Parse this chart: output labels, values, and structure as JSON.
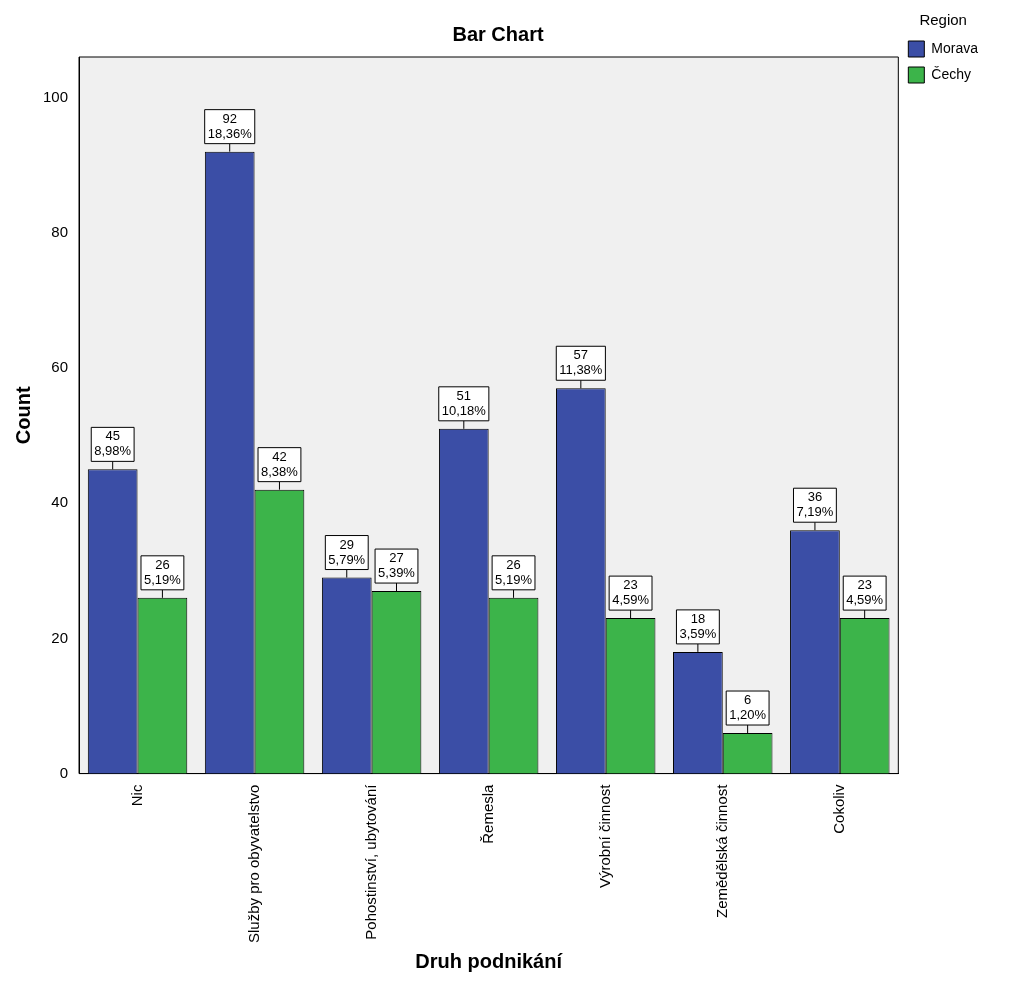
{
  "chart_data": {
    "type": "bar",
    "title": "Bar Chart",
    "xlabel": "Druh podnikání",
    "ylabel": "Count",
    "legend_title": "Region",
    "legend": "top right",
    "grid": false,
    "categories": [
      "Nic",
      "Služby pro obyvatelstvo",
      "Pohostinství, ubytování",
      "Řemesla",
      "Výrobní činnost",
      "Zemědělská činnost",
      "Cokoliv"
    ],
    "ylim": [
      0,
      106
    ],
    "yticks": [
      0,
      20,
      40,
      60,
      80,
      100
    ],
    "series": [
      {
        "name": "Morava",
        "color": "#3b4ea6",
        "values": [
          45,
          92,
          29,
          51,
          57,
          18,
          36
        ],
        "value_labels": [
          "45\n8,98%",
          "92\n18,36%",
          "29\n5,79%",
          "51\n10,18%",
          "57\n11,38%",
          "18\n3,59%",
          "36\n7,19%"
        ]
      },
      {
        "name": "Čechy",
        "color": "#3cb44a",
        "values": [
          26,
          42,
          27,
          26,
          23,
          6,
          23
        ],
        "value_labels": [
          "26\n5,19%",
          "42\n8,38%",
          "27\n5,39%",
          "26\n5,19%",
          "23\n4,59%",
          "6\n1,20%",
          "23\n4,59%"
        ]
      }
    ]
  }
}
